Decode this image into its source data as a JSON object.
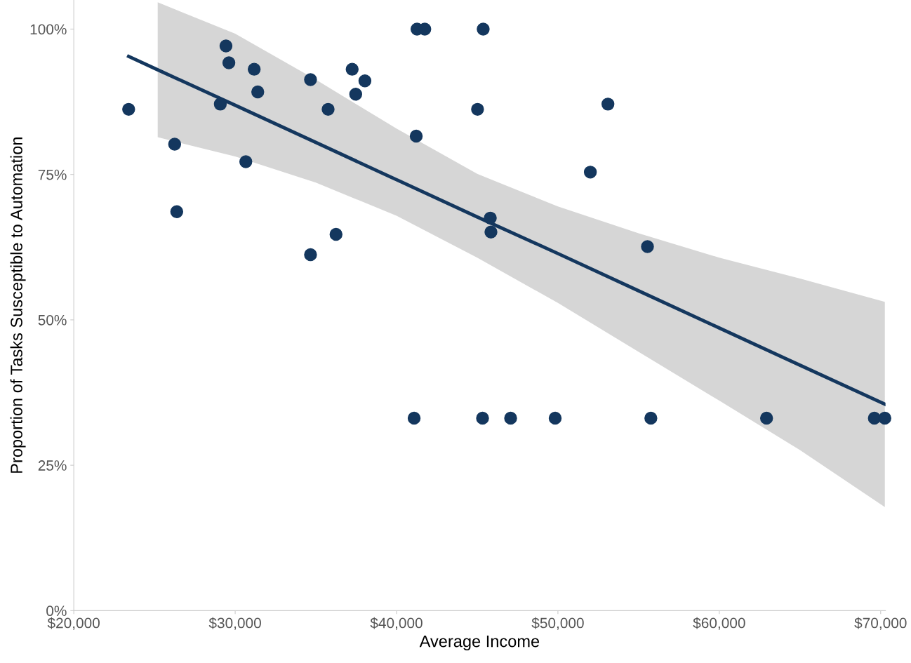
{
  "chart_data": {
    "type": "scatter",
    "xlabel": "Average Income",
    "ylabel": "Proportion of Tasks Susceptible to Automation",
    "xlim": [
      20000,
      70300
    ],
    "ylim": [
      0,
      105
    ],
    "xticks": [
      {
        "value": 20000,
        "label": "$20,000"
      },
      {
        "value": 30000,
        "label": "$30,000"
      },
      {
        "value": 40000,
        "label": "$40,000"
      },
      {
        "value": 50000,
        "label": "$50,000"
      },
      {
        "value": 60000,
        "label": "$60,000"
      },
      {
        "value": 70000,
        "label": "$70,000"
      }
    ],
    "yticks": [
      {
        "value": 0,
        "label": "0%"
      },
      {
        "value": 25,
        "label": "25%"
      },
      {
        "value": 50,
        "label": "50%"
      },
      {
        "value": 75,
        "label": "75%"
      },
      {
        "value": 100,
        "label": "100%"
      }
    ],
    "grid": false,
    "marker": "circle",
    "series": [
      {
        "color": "#14375e",
        "x": [
          23400,
          26250,
          26380,
          29080,
          29430,
          29610,
          30660,
          31180,
          31400,
          34670,
          34670,
          35760,
          36250,
          37250,
          37470,
          38040,
          41090,
          41220,
          41270,
          41750,
          45020,
          45370,
          45330,
          45810,
          45850,
          47070,
          49830,
          52010,
          53100,
          55550,
          55760,
          62930,
          69610,
          70260
        ],
        "values": [
          86.2,
          80.2,
          68.6,
          87.1,
          97.1,
          94.2,
          77.2,
          93.1,
          89.2,
          91.3,
          61.2,
          86.2,
          64.7,
          93.1,
          88.8,
          91.1,
          33.1,
          81.6,
          100,
          100,
          86.2,
          100,
          33.1,
          67.5,
          65.1,
          33.1,
          33.1,
          75.4,
          87.1,
          62.6,
          33.1,
          33.1,
          33.1,
          33.1
        ]
      },
      {
        "type": "line",
        "color": "#14375e",
        "marker": "none",
        "line_style": "solid",
        "x": [
          23400,
          25200,
          30000,
          35000,
          40000,
          45000,
          50000,
          55000,
          60000,
          65000,
          70260
        ],
        "values": [
          95.3,
          93.0,
          86.9,
          80.5,
          74.1,
          67.7,
          61.4,
          55.0,
          48.6,
          42.2,
          35.5
        ],
        "lower": [
          null,
          81.4,
          78.1,
          73.6,
          67.9,
          60.7,
          52.9,
          44.5,
          36.1,
          27.6,
          17.8
        ],
        "upper": [
          null,
          104.6,
          99.2,
          91.3,
          82.9,
          75.1,
          69.5,
          64.9,
          60.7,
          57.1,
          53.1
        ]
      }
    ]
  }
}
